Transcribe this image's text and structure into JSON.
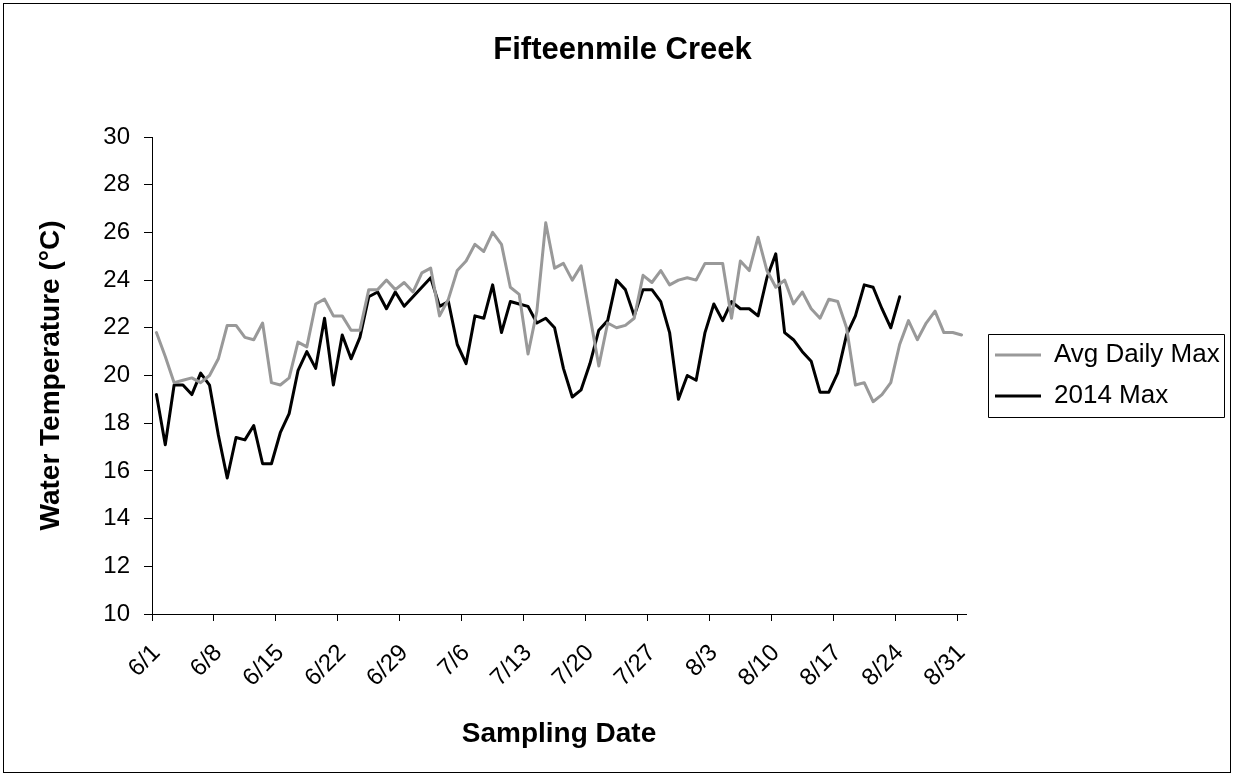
{
  "chart_data": {
    "type": "line",
    "title": "Fifteenmile Creek",
    "xlabel": "Sampling Date",
    "ylabel": "Water Temperature (°C)",
    "categories": [
      "6/1",
      null,
      null,
      null,
      null,
      null,
      null,
      "6/8",
      null,
      null,
      null,
      null,
      null,
      null,
      "6/15",
      null,
      null,
      null,
      null,
      null,
      null,
      "6/22",
      null,
      null,
      null,
      null,
      null,
      null,
      "6/29",
      null,
      null,
      null,
      null,
      null,
      null,
      "7/6",
      null,
      null,
      null,
      null,
      null,
      null,
      "7/13",
      null,
      null,
      null,
      null,
      null,
      null,
      "7/20",
      null,
      null,
      null,
      null,
      null,
      null,
      "7/27",
      null,
      null,
      null,
      null,
      null,
      null,
      "8/3",
      null,
      null,
      null,
      null,
      null,
      null,
      "8/10",
      null,
      null,
      null,
      null,
      null,
      null,
      "8/17",
      null,
      null,
      null,
      null,
      null,
      null,
      "8/24",
      null,
      null,
      null,
      null,
      null,
      null,
      "8/31"
    ],
    "series": [
      {
        "name": "Avg Daily Max",
        "color": "#999999",
        "values": [
          21.8,
          20.8,
          19.7,
          19.8,
          19.9,
          19.7,
          20.0,
          20.7,
          22.1,
          22.1,
          21.6,
          21.5,
          22.2,
          19.7,
          19.6,
          19.9,
          21.4,
          21.2,
          23.0,
          23.2,
          22.5,
          22.5,
          21.9,
          21.9,
          23.6,
          23.6,
          24.0,
          23.6,
          23.9,
          23.5,
          24.3,
          24.5,
          22.5,
          23.2,
          24.4,
          24.8,
          25.5,
          25.2,
          26.0,
          25.5,
          23.7,
          23.4,
          20.9,
          22.7,
          26.4,
          24.5,
          24.7,
          24.0,
          24.6,
          22.5,
          20.4,
          22.2,
          22.0,
          22.1,
          22.4,
          24.2,
          23.9,
          24.4,
          23.8,
          24.0,
          24.1,
          24.0,
          24.7,
          24.7,
          24.7,
          22.4,
          24.8,
          24.4,
          25.8,
          24.4,
          23.7,
          24.0,
          23.0,
          23.5,
          22.8,
          22.4,
          23.2,
          23.1,
          22.0,
          19.6,
          19.7,
          18.9,
          19.2,
          19.7,
          21.3,
          22.3,
          21.5,
          22.2,
          22.7,
          21.8,
          21.8,
          21.7
        ]
      },
      {
        "name": "2014 Max",
        "color": "#000000",
        "values": [
          19.2,
          17.1,
          19.6,
          19.6,
          19.2,
          20.1,
          19.6,
          17.5,
          15.7,
          17.4,
          17.3,
          17.9,
          16.3,
          16.3,
          17.6,
          18.4,
          20.2,
          21.0,
          20.3,
          22.4,
          19.6,
          21.7,
          20.7,
          21.6,
          23.3,
          23.5,
          22.8,
          23.5,
          22.9,
          23.3,
          23.7,
          24.1,
          22.9,
          23.1,
          21.3,
          20.5,
          22.5,
          22.4,
          23.8,
          21.8,
          23.1,
          23.0,
          22.9,
          22.2,
          22.4,
          22.0,
          20.3,
          19.1,
          19.4,
          20.5,
          21.9,
          22.3,
          24.0,
          23.6,
          22.5,
          23.6,
          23.6,
          23.1,
          21.8,
          19.0,
          20.0,
          19.8,
          21.8,
          23.0,
          22.3,
          23.1,
          22.8,
          22.8,
          22.5,
          24.1,
          25.1,
          21.8,
          21.5,
          21.0,
          20.6,
          19.3,
          19.3,
          20.1,
          21.7,
          22.5,
          23.8,
          23.7,
          22.8,
          22.0,
          23.3,
          null,
          null,
          null,
          null,
          null,
          null,
          null
        ]
      }
    ],
    "ylim": [
      10,
      30
    ],
    "yticks": [
      10,
      12,
      14,
      16,
      18,
      20,
      22,
      24,
      26,
      28,
      30
    ],
    "grid": false,
    "legend": "right",
    "marker": "none",
    "line_style": "solid"
  }
}
